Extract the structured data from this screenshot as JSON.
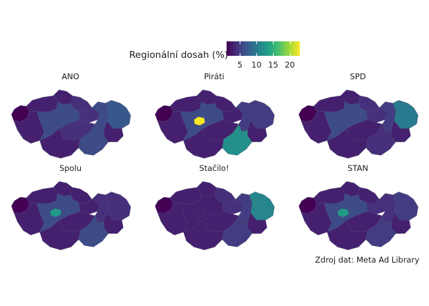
{
  "legend": {
    "title": "Regionální dosah (%)",
    "range": [
      1,
      23
    ],
    "ticks": [
      {
        "value": 5,
        "label": "5"
      },
      {
        "value": 10,
        "label": "10"
      },
      {
        "value": 15,
        "label": "15"
      },
      {
        "value": 20,
        "label": "20"
      }
    ]
  },
  "colors": [
    "#440154",
    "#46327e",
    "#365c8d",
    "#277f8e",
    "#1fa187",
    "#4ac16d",
    "#a0da39",
    "#fde725"
  ],
  "regions": [
    "Karlovarský",
    "Ústecký",
    "Liberecký",
    "Královéhradecký",
    "Pardubický",
    "Olomoucký",
    "Moravskoslezský",
    "Zlínský",
    "Jihomoravský",
    "Vysočina",
    "Jihočeský",
    "Plzeňský",
    "Středočeský",
    "Praha"
  ],
  "panels": [
    {
      "title": "ANO",
      "values": [
        1,
        3,
        3,
        4,
        4,
        6,
        7,
        3,
        6,
        4,
        3,
        3,
        6,
        6
      ]
    },
    {
      "title": "Piráti",
      "values": [
        1,
        3,
        3,
        3,
        3,
        5,
        5,
        3,
        12,
        3,
        3,
        3,
        6,
        23
      ]
    },
    {
      "title": "SPD",
      "values": [
        1,
        3,
        3,
        4,
        4,
        5,
        10,
        3,
        4,
        3,
        3,
        3,
        6,
        6
      ]
    },
    {
      "title": "Spolu",
      "values": [
        1,
        3,
        3,
        3,
        3,
        4,
        4,
        3,
        6,
        3,
        3,
        3,
        6,
        13
      ]
    },
    {
      "title": "Stačilo!",
      "values": [
        1,
        3,
        3,
        4,
        4,
        5,
        11,
        3,
        5,
        3,
        3,
        3,
        3,
        3
      ]
    },
    {
      "title": "STAN",
      "values": [
        1,
        3,
        3,
        3,
        4,
        4,
        5,
        3,
        5,
        3,
        3,
        3,
        6,
        13
      ]
    }
  ],
  "caption": "Zdroj dat: Meta Ad Library"
}
